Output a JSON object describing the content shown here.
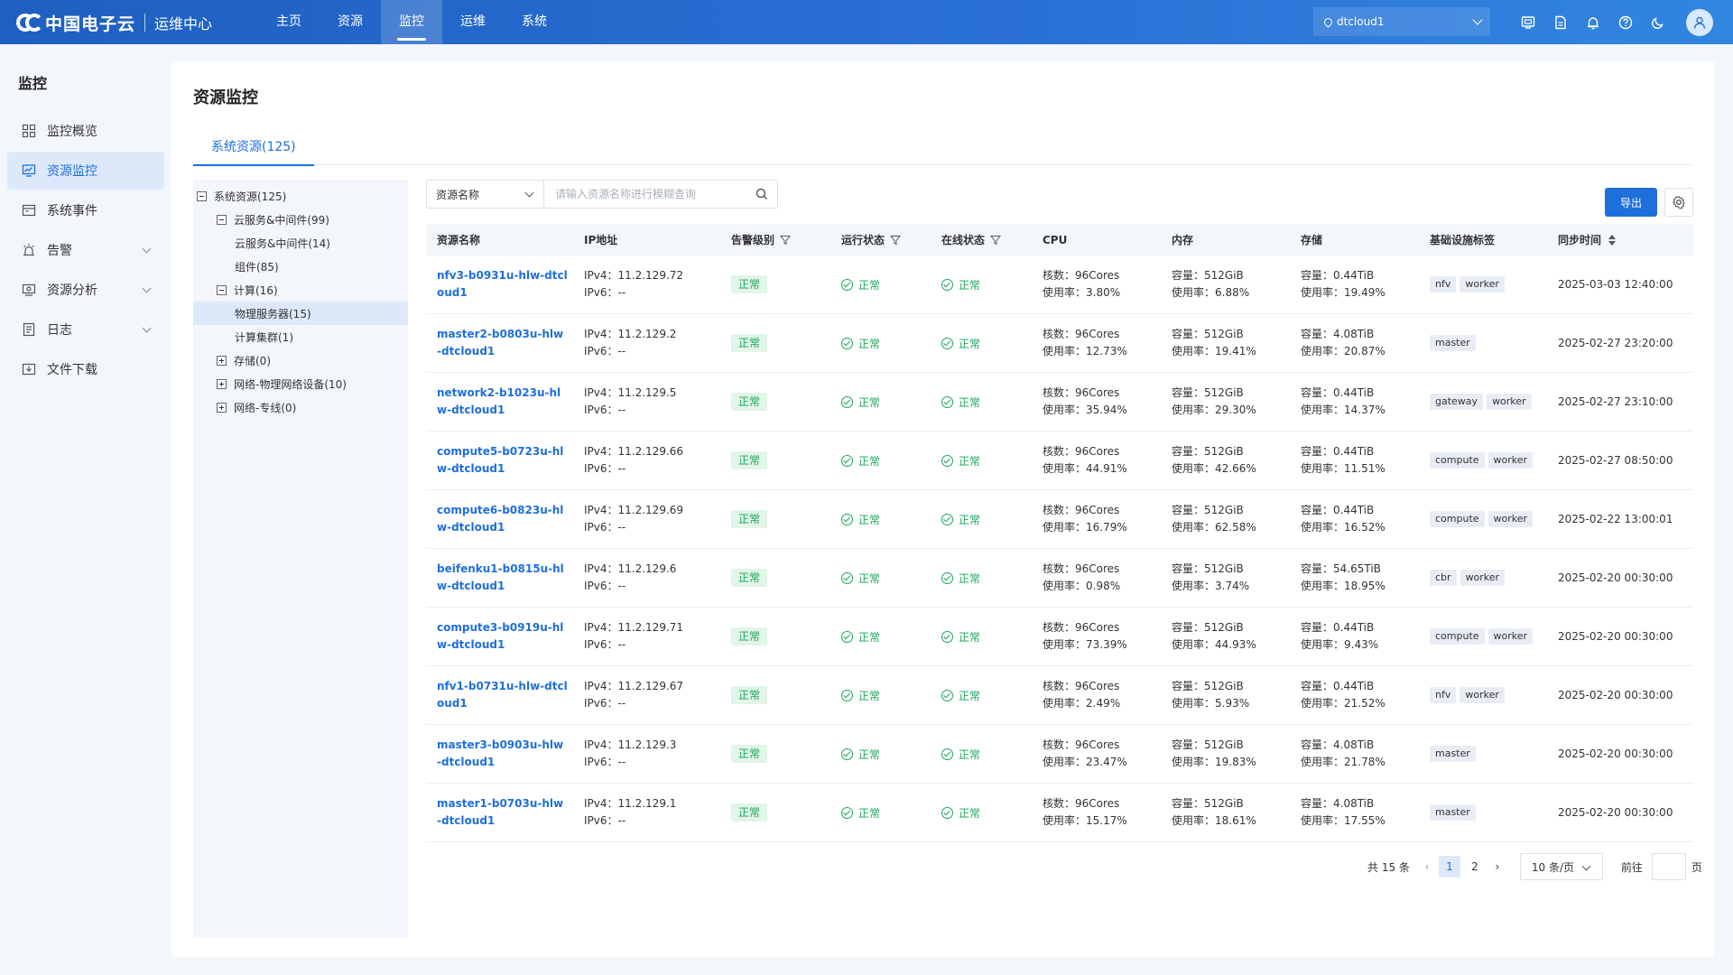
{
  "header": {
    "logo_text": "中国电子云",
    "logo_sub": "运维中心",
    "nav": [
      "主页",
      "资源",
      "监控",
      "运维",
      "系统"
    ],
    "nav_active": 2,
    "tenant": "dtcloud1"
  },
  "sidebar": {
    "title": "监控",
    "items": [
      {
        "label": "监控概览",
        "icon": "grid-icon",
        "active": false,
        "expandable": false
      },
      {
        "label": "资源监控",
        "icon": "monitor-chart-icon",
        "active": true,
        "expandable": false
      },
      {
        "label": "系统事件",
        "icon": "calendar-icon",
        "active": false,
        "expandable": false
      },
      {
        "label": "告警",
        "icon": "alarm-icon",
        "active": false,
        "expandable": true
      },
      {
        "label": "资源分析",
        "icon": "analysis-icon",
        "active": false,
        "expandable": true
      },
      {
        "label": "日志",
        "icon": "log-icon",
        "active": false,
        "expandable": true
      },
      {
        "label": "文件下载",
        "icon": "download-icon",
        "active": false,
        "expandable": false
      }
    ]
  },
  "page": {
    "title": "资源监控",
    "tab": "系统资源(125)"
  },
  "tree": [
    {
      "label": "系统资源(125)",
      "level": 0,
      "toggle": "minus"
    },
    {
      "label": "云服务&中间件(99)",
      "level": 1,
      "toggle": "minus"
    },
    {
      "label": "云服务&中间件(14)",
      "level": 2,
      "toggle": "none"
    },
    {
      "label": "组件(85)",
      "level": 2,
      "toggle": "none"
    },
    {
      "label": "计算(16)",
      "level": 1,
      "toggle": "minus"
    },
    {
      "label": "物理服务器(15)",
      "level": 2,
      "toggle": "none",
      "selected": true
    },
    {
      "label": "计算集群(1)",
      "level": 2,
      "toggle": "none"
    },
    {
      "label": "存储(0)",
      "level": 1,
      "toggle": "plus"
    },
    {
      "label": "网络-物理网络设备(10)",
      "level": 1,
      "toggle": "plus"
    },
    {
      "label": "网络-专线(0)",
      "level": 1,
      "toggle": "plus"
    }
  ],
  "toolbar": {
    "filter_field": "资源名称",
    "search_placeholder": "请输入资源名称进行模糊查询",
    "export_label": "导出"
  },
  "table": {
    "columns": [
      "资源名称",
      "IP地址",
      "告警级别",
      "运行状态",
      "在线状态",
      "CPU",
      "内存",
      "存储",
      "基础设施标签",
      "同步时间"
    ],
    "rows": [
      {
        "name": "nfv3-b0931u-hlw-dtcloud1",
        "ipv4": "IPv4：11.2.129.72",
        "ipv6": "IPv6：--",
        "alarm": "正常",
        "run": "正常",
        "online": "正常",
        "cpu_cores": "核数：96Cores",
        "cpu_usage": "使用率：3.80%",
        "mem_cap": "容量：512GiB",
        "mem_usage": "使用率：6.88%",
        "store_cap": "容量：0.44TiB",
        "store_usage": "使用率：19.49%",
        "tags": [
          "nfv",
          "worker"
        ],
        "time": "2025-03-03 12:40:00"
      },
      {
        "name": "master2-b0803u-hlw-dtcloud1",
        "ipv4": "IPv4：11.2.129.2",
        "ipv6": "IPv6：--",
        "alarm": "正常",
        "run": "正常",
        "online": "正常",
        "cpu_cores": "核数：96Cores",
        "cpu_usage": "使用率：12.73%",
        "mem_cap": "容量：512GiB",
        "mem_usage": "使用率：19.41%",
        "store_cap": "容量：4.08TiB",
        "store_usage": "使用率：20.87%",
        "tags": [
          "master"
        ],
        "time": "2025-02-27 23:20:00"
      },
      {
        "name": "network2-b1023u-hlw-dtcloud1",
        "ipv4": "IPv4：11.2.129.5",
        "ipv6": "IPv6：--",
        "alarm": "正常",
        "run": "正常",
        "online": "正常",
        "cpu_cores": "核数：96Cores",
        "cpu_usage": "使用率：35.94%",
        "mem_cap": "容量：512GiB",
        "mem_usage": "使用率：29.30%",
        "store_cap": "容量：0.44TiB",
        "store_usage": "使用率：14.37%",
        "tags": [
          "gateway",
          "worker"
        ],
        "time": "2025-02-27 23:10:00"
      },
      {
        "name": "compute5-b0723u-hlw-dtcloud1",
        "ipv4": "IPv4：11.2.129.66",
        "ipv6": "IPv6：--",
        "alarm": "正常",
        "run": "正常",
        "online": "正常",
        "cpu_cores": "核数：96Cores",
        "cpu_usage": "使用率：44.91%",
        "mem_cap": "容量：512GiB",
        "mem_usage": "使用率：42.66%",
        "store_cap": "容量：0.44TiB",
        "store_usage": "使用率：11.51%",
        "tags": [
          "compute",
          "worker"
        ],
        "time": "2025-02-27 08:50:00"
      },
      {
        "name": "compute6-b0823u-hlw-dtcloud1",
        "ipv4": "IPv4：11.2.129.69",
        "ipv6": "IPv6：--",
        "alarm": "正常",
        "run": "正常",
        "online": "正常",
        "cpu_cores": "核数：96Cores",
        "cpu_usage": "使用率：16.79%",
        "mem_cap": "容量：512GiB",
        "mem_usage": "使用率：62.58%",
        "store_cap": "容量：0.44TiB",
        "store_usage": "使用率：16.52%",
        "tags": [
          "compute",
          "worker"
        ],
        "time": "2025-02-22 13:00:01"
      },
      {
        "name": "beifenku1-b0815u-hlw-dtcloud1",
        "ipv4": "IPv4：11.2.129.6",
        "ipv6": "IPv6：--",
        "alarm": "正常",
        "run": "正常",
        "online": "正常",
        "cpu_cores": "核数：96Cores",
        "cpu_usage": "使用率：0.98%",
        "mem_cap": "容量：512GiB",
        "mem_usage": "使用率：3.74%",
        "store_cap": "容量：54.65TiB",
        "store_usage": "使用率：18.95%",
        "tags": [
          "cbr",
          "worker"
        ],
        "time": "2025-02-20 00:30:00"
      },
      {
        "name": "compute3-b0919u-hlw-dtcloud1",
        "ipv4": "IPv4：11.2.129.71",
        "ipv6": "IPv6：--",
        "alarm": "正常",
        "run": "正常",
        "online": "正常",
        "cpu_cores": "核数：96Cores",
        "cpu_usage": "使用率：73.39%",
        "mem_cap": "容量：512GiB",
        "mem_usage": "使用率：44.93%",
        "store_cap": "容量：0.44TiB",
        "store_usage": "使用率：9.43%",
        "tags": [
          "compute",
          "worker"
        ],
        "time": "2025-02-20 00:30:00"
      },
      {
        "name": "nfv1-b0731u-hlw-dtcloud1",
        "ipv4": "IPv4：11.2.129.67",
        "ipv6": "IPv6：--",
        "alarm": "正常",
        "run": "正常",
        "online": "正常",
        "cpu_cores": "核数：96Cores",
        "cpu_usage": "使用率：2.49%",
        "mem_cap": "容量：512GiB",
        "mem_usage": "使用率：5.93%",
        "store_cap": "容量：0.44TiB",
        "store_usage": "使用率：21.52%",
        "tags": [
          "nfv",
          "worker"
        ],
        "time": "2025-02-20 00:30:00"
      },
      {
        "name": "master3-b0903u-hlw-dtcloud1",
        "ipv4": "IPv4：11.2.129.3",
        "ipv6": "IPv6：--",
        "alarm": "正常",
        "run": "正常",
        "online": "正常",
        "cpu_cores": "核数：96Cores",
        "cpu_usage": "使用率：23.47%",
        "mem_cap": "容量：512GiB",
        "mem_usage": "使用率：19.83%",
        "store_cap": "容量：4.08TiB",
        "store_usage": "使用率：21.78%",
        "tags": [
          "master"
        ],
        "time": "2025-02-20 00:30:00"
      },
      {
        "name": "master1-b0703u-hlw-dtcloud1",
        "ipv4": "IPv4：11.2.129.1",
        "ipv6": "IPv6：--",
        "alarm": "正常",
        "run": "正常",
        "online": "正常",
        "cpu_cores": "核数：96Cores",
        "cpu_usage": "使用率：15.17%",
        "mem_cap": "容量：512GiB",
        "mem_usage": "使用率：18.61%",
        "store_cap": "容量：4.08TiB",
        "store_usage": "使用率：17.55%",
        "tags": [
          "master"
        ],
        "time": "2025-02-20 00:30:00"
      }
    ]
  },
  "pagination": {
    "total": "共 15 条",
    "pages": [
      "1",
      "2"
    ],
    "current": 0,
    "page_size": "10 条/页",
    "goto_label": "前往",
    "page_label": "页"
  },
  "colors": {
    "brand": "#1e6fdc",
    "header_start": "#1f5fc0",
    "ok_green": "#1aa55a"
  }
}
